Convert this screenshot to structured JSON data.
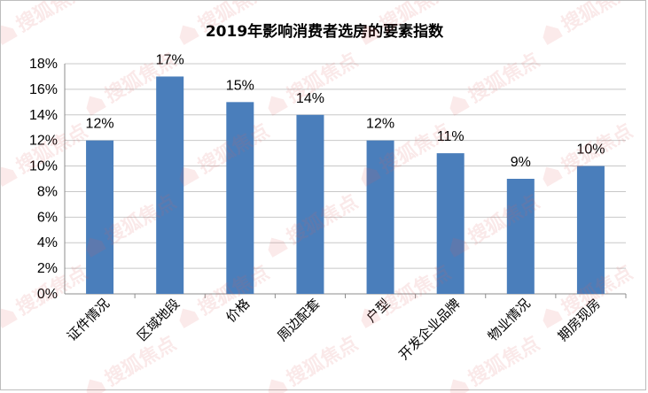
{
  "chart_data": {
    "type": "bar",
    "title": "2019年影响消费者选房的要素指数",
    "categories": [
      "证件情况",
      "区域地段",
      "价格",
      "周边配套",
      "户型",
      "开发企业品牌",
      "物业情况",
      "期房现房"
    ],
    "values": [
      12,
      17,
      15,
      14,
      12,
      11,
      9,
      10
    ],
    "data_labels": [
      "12%",
      "17%",
      "15%",
      "14%",
      "12%",
      "11%",
      "9%",
      "10%"
    ],
    "yticks": [
      "0%",
      "2%",
      "4%",
      "6%",
      "8%",
      "10%",
      "12%",
      "14%",
      "16%",
      "18%"
    ],
    "ylim": [
      0,
      18
    ],
    "ytick_step": 2,
    "xlabel": "",
    "ylabel": "",
    "grid": true,
    "legend": "none",
    "bar_color": "#4a7ebb",
    "gridline_color": "#c8c8c8"
  },
  "watermark": {
    "text": "搜狐焦点",
    "icon": "house-icon",
    "color": "#e06060"
  }
}
